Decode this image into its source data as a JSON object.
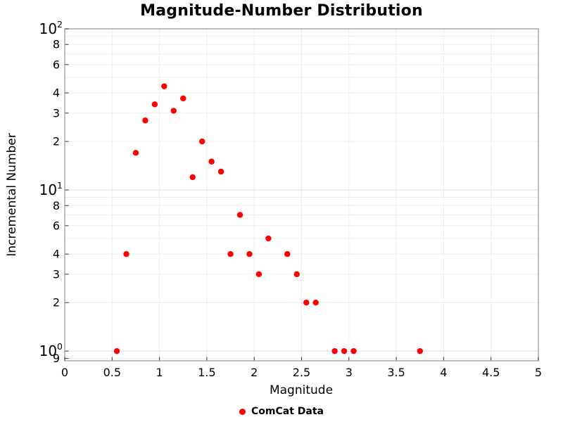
{
  "title": "Magnitude-Number Distribution",
  "chart_data": {
    "type": "scatter",
    "title": "Magnitude-Number Distribution",
    "xlabel": "Magnitude",
    "ylabel": "Incremental Number",
    "grid": true,
    "legend_position": "bottom-center",
    "legend": [
      {
        "label": "ComCat Data",
        "color": "#ff0000",
        "marker": "circle"
      }
    ],
    "colors": {
      "marker": "#ff0000",
      "grid_major": "#dedede",
      "grid_minor": "#ececec",
      "axis_border": "#a9a9a9",
      "tick_mark": "#333333"
    },
    "x_axis": {
      "min": 0,
      "max": 5,
      "ticks": [
        {
          "v": 0,
          "label": "0"
        },
        {
          "v": 0.5,
          "label": "0.5"
        },
        {
          "v": 1,
          "label": "1"
        },
        {
          "v": 1.5,
          "label": "1.5"
        },
        {
          "v": 2,
          "label": "2"
        },
        {
          "v": 2.5,
          "label": "2.5"
        },
        {
          "v": 3,
          "label": "3"
        },
        {
          "v": 3.5,
          "label": "3.5"
        },
        {
          "v": 4,
          "label": "4"
        },
        {
          "v": 4.5,
          "label": "4.5"
        },
        {
          "v": 5,
          "label": "5"
        }
      ],
      "gridlines": [
        0.5,
        1,
        1.5,
        2,
        2.5,
        3,
        3.5,
        4,
        4.5
      ]
    },
    "y_axis": {
      "scale": "log",
      "min": 0.87,
      "max": 100,
      "ticks": [
        {
          "v": 100,
          "base": "10",
          "exp": "2"
        },
        {
          "v": 80,
          "label": "8"
        },
        {
          "v": 60,
          "label": "6"
        },
        {
          "v": 40,
          "label": "4"
        },
        {
          "v": 30,
          "label": "3"
        },
        {
          "v": 20,
          "label": "2"
        },
        {
          "v": 10,
          "base": "10",
          "exp": "1"
        },
        {
          "v": 8,
          "label": "8"
        },
        {
          "v": 6,
          "label": "6"
        },
        {
          "v": 4,
          "label": "4"
        },
        {
          "v": 3,
          "label": "3"
        },
        {
          "v": 2,
          "label": "2"
        },
        {
          "v": 1,
          "base": "10",
          "exp": "0"
        },
        {
          "v": 0.9,
          "label": "9"
        }
      ],
      "gridlines": [
        0.9,
        1,
        2,
        3,
        4,
        5,
        6,
        7,
        8,
        9,
        10,
        20,
        30,
        40,
        50,
        60,
        70,
        80,
        90,
        100
      ]
    },
    "series": [
      {
        "name": "ComCat Data",
        "color": "#ff0000",
        "marker": "circle",
        "points": [
          [
            0.55,
            1
          ],
          [
            0.65,
            4
          ],
          [
            0.75,
            17
          ],
          [
            0.85,
            27
          ],
          [
            0.95,
            34
          ],
          [
            1.05,
            44
          ],
          [
            1.15,
            31
          ],
          [
            1.25,
            37
          ],
          [
            1.35,
            12
          ],
          [
            1.45,
            20
          ],
          [
            1.55,
            15
          ],
          [
            1.65,
            13
          ],
          [
            1.75,
            4
          ],
          [
            1.85,
            7
          ],
          [
            1.95,
            4
          ],
          [
            2.05,
            3
          ],
          [
            2.15,
            5
          ],
          [
            2.35,
            4
          ],
          [
            2.45,
            3
          ],
          [
            2.55,
            2
          ],
          [
            2.65,
            2
          ],
          [
            2.85,
            1
          ],
          [
            2.95,
            1
          ],
          [
            3.05,
            1
          ],
          [
            3.75,
            1
          ]
        ]
      }
    ]
  }
}
